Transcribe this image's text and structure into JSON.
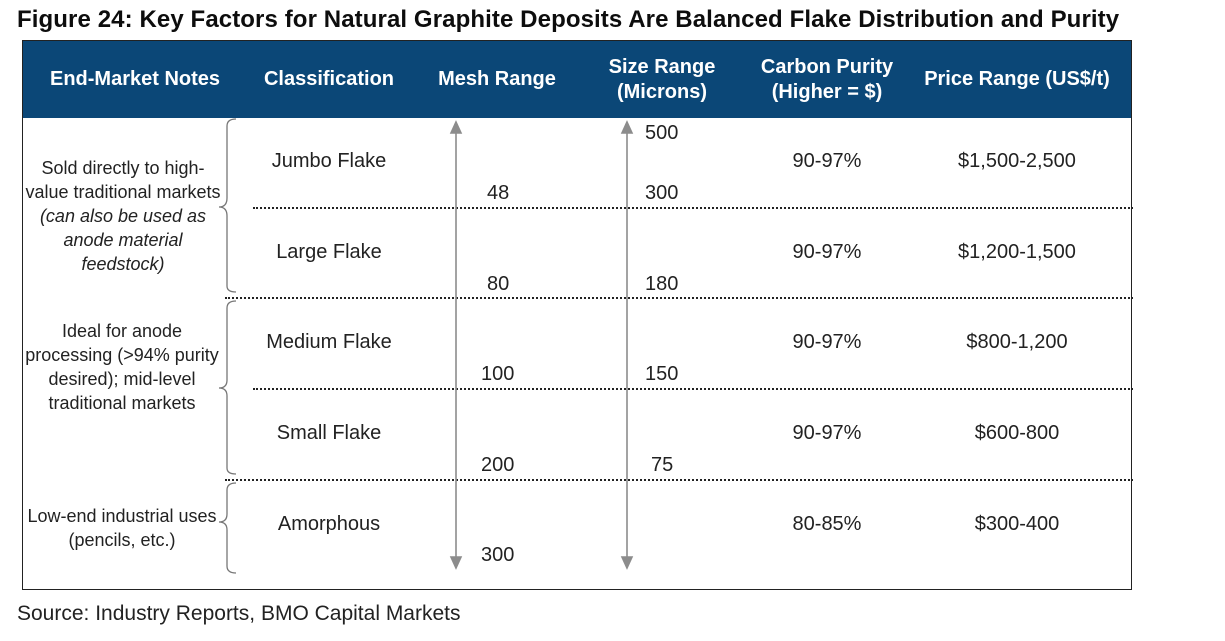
{
  "title": "Figure 24: Key Factors for Natural Graphite Deposits Are Balanced Flake Distribution and Purity",
  "header": {
    "notes": "End-Market Notes",
    "classification": "Classification",
    "mesh": "Mesh Range",
    "size_line1": "Size Range",
    "size_line2": "(Microns)",
    "purity_line1": "Carbon Purity",
    "purity_line2": "(Higher = $)",
    "price": "Price Range (US$/t)"
  },
  "notes": {
    "group1_plain": "Sold directly to high-value traditional markets",
    "group1_italic": "(can also be used as anode material feedstock)",
    "group2": "Ideal for anode processing (>94% purity desired); mid-level traditional markets",
    "group3": "Low-end industrial uses (pencils, etc.)"
  },
  "rows": [
    {
      "classification": "Jumbo Flake",
      "purity": "90-97%",
      "price": "$1,500-2,500"
    },
    {
      "classification": "Large Flake",
      "purity": "90-97%",
      "price": "$1,200-1,500"
    },
    {
      "classification": "Medium Flake",
      "purity": "90-97%",
      "price": "$800-1,200"
    },
    {
      "classification": "Small Flake",
      "purity": "90-97%",
      "price": "$600-800"
    },
    {
      "classification": "Amorphous",
      "purity": "80-85%",
      "price": "$300-400"
    }
  ],
  "mesh_ticks": [
    "48",
    "80",
    "100",
    "200",
    "300"
  ],
  "size_ticks": [
    "500",
    "300",
    "180",
    "150",
    "75"
  ],
  "source": "Source: Industry Reports, BMO Capital Markets"
}
